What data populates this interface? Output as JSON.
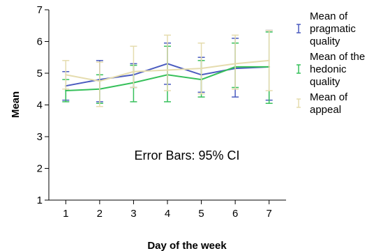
{
  "chart_data": {
    "type": "line",
    "xlabel": "Day of the week",
    "ylabel": "Mean",
    "annotation": "Error Bars: 95% CI",
    "ylim": [
      1,
      7
    ],
    "xlim": [
      0.5,
      7.5
    ],
    "x": [
      1,
      2,
      3,
      4,
      5,
      6,
      7
    ],
    "x_ticks": [
      "1",
      "2",
      "3",
      "4",
      "5",
      "6",
      "7"
    ],
    "y_ticks": [
      "1",
      "2",
      "3",
      "4",
      "5",
      "6",
      "7"
    ],
    "error_bars": "95% CI",
    "legend_position": "right",
    "series": [
      {
        "name": "Mean of pragmatic quality",
        "legend_lines": [
          "Mean of",
          "pragmatic",
          "quality"
        ],
        "color": "#4a5bbf",
        "values": [
          4.6,
          4.8,
          4.95,
          5.3,
          4.95,
          5.15,
          5.2
        ],
        "ci_low": [
          4.15,
          4.1,
          4.55,
          4.65,
          4.4,
          4.25,
          4.15
        ],
        "ci_high": [
          5.05,
          5.4,
          5.3,
          5.95,
          5.5,
          6.1,
          6.35
        ]
      },
      {
        "name": "Mean of the hedonic quality",
        "legend_lines": [
          "Mean of the",
          "hedonic",
          "quality"
        ],
        "color": "#36c05a",
        "values": [
          4.45,
          4.5,
          4.7,
          4.95,
          4.8,
          5.2,
          5.2
        ],
        "ci_low": [
          4.1,
          4.05,
          4.1,
          4.1,
          4.25,
          4.55,
          4.05
        ],
        "ci_high": [
          4.8,
          4.95,
          5.25,
          5.85,
          5.4,
          5.95,
          6.3
        ]
      },
      {
        "name": "Mean of appeal",
        "legend_lines": [
          "Mean of",
          "appeal"
        ],
        "color": "#e5dcae",
        "values": [
          4.95,
          4.75,
          5.05,
          5.1,
          5.15,
          5.3,
          5.4
        ],
        "ci_low": [
          4.5,
          3.95,
          4.55,
          4.45,
          4.35,
          4.5,
          4.45
        ],
        "ci_high": [
          5.4,
          5.35,
          5.85,
          6.2,
          5.95,
          6.2,
          6.35
        ]
      }
    ]
  }
}
